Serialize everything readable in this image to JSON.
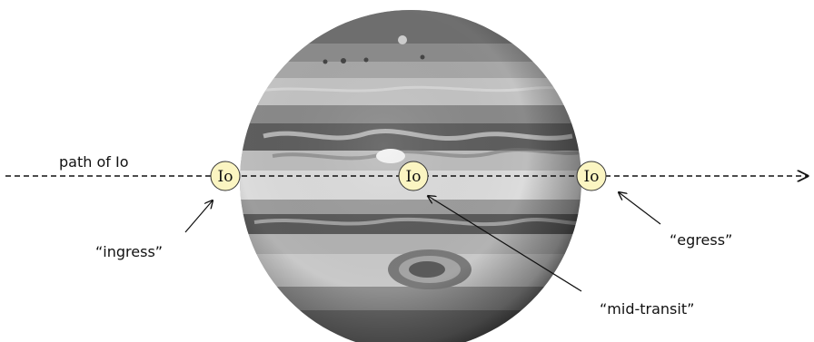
{
  "path_label": "path of Io",
  "moon_label": "Io",
  "labels": {
    "ingress": "“ingress”",
    "mid_transit": "“mid-transit”",
    "egress": "“egress”"
  },
  "colors": {
    "moon_fill": "#fbf5c2",
    "moon_stroke": "#333333",
    "path_line": "#111111",
    "background": "#ffffff"
  }
}
